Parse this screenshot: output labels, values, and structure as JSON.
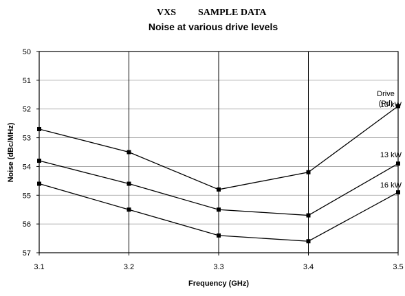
{
  "header": {
    "left": "VXS",
    "right": "SAMPLE DATA"
  },
  "chart_data": {
    "type": "line",
    "title": "Noise at various drive levels",
    "xlabel": "Frequency (GHz)",
    "ylabel": "Noise (dBc/MHz)",
    "x": [
      3.1,
      3.2,
      3.3,
      3.4,
      3.5
    ],
    "x_ticks": [
      "3.1",
      "3.2",
      "3.3",
      "3.4",
      "3.5"
    ],
    "y_ticks": [
      "50",
      "51",
      "52",
      "53",
      "54",
      "55",
      "56",
      "57"
    ],
    "ylim": [
      50,
      57
    ],
    "y_inverted": true,
    "grid": "major",
    "legend_title": [
      "Drive",
      "(Pd)"
    ],
    "series": [
      {
        "name": "10 kW",
        "values": [
          52.7,
          53.5,
          54.8,
          54.2,
          51.9
        ]
      },
      {
        "name": "13 kW",
        "values": [
          53.8,
          54.6,
          55.5,
          55.7,
          53.9
        ]
      },
      {
        "name": "16 kW",
        "values": [
          54.6,
          55.5,
          56.4,
          56.6,
          54.9
        ]
      }
    ],
    "line_color": "#000000"
  }
}
